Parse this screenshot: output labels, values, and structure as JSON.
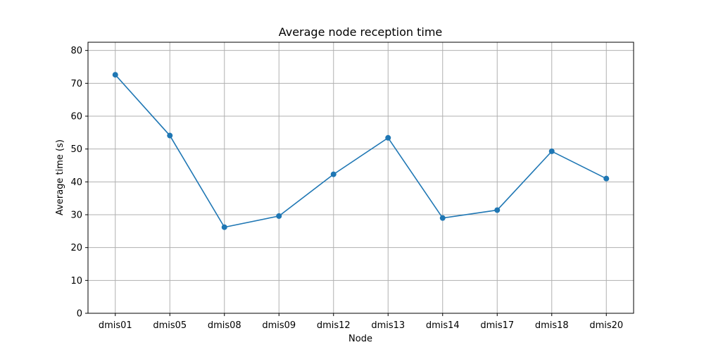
{
  "chart_data": {
    "type": "line",
    "title": "Average node reception time",
    "xlabel": "Node",
    "ylabel": "Average time (s)",
    "categories": [
      "dmis01",
      "dmis05",
      "dmis08",
      "dmis09",
      "dmis12",
      "dmis13",
      "dmis14",
      "dmis17",
      "dmis18",
      "dmis20"
    ],
    "series": [
      {
        "values": [
          72.6,
          54.1,
          26.2,
          29.6,
          42.3,
          53.4,
          29.0,
          31.4,
          49.3,
          41.0
        ],
        "color": "#1f77b4"
      }
    ],
    "ylim": [
      0,
      82.5
    ],
    "yticks": [
      0,
      10,
      20,
      30,
      40,
      50,
      60,
      70,
      80
    ],
    "ytick_labels": [
      "0",
      "10",
      "20",
      "30",
      "40",
      "50",
      "60",
      "70",
      "80"
    ],
    "grid": true,
    "legend": "none",
    "markers": true
  }
}
